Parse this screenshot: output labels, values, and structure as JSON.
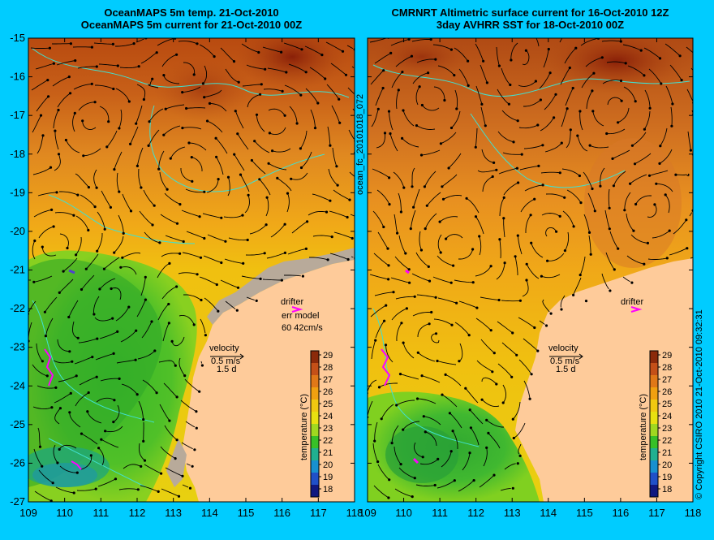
{
  "panels": [
    {
      "id": "left",
      "title_line1": "OceanMAPS 5m temp. 21-Oct-2010",
      "title_line2": "OceanMAPS 5m current for 21-Oct-2010 00Z",
      "drifter_label": "drifter",
      "err_model_label": "err model",
      "err_model_value": "60 42cm/s",
      "velocity_label": "velocity",
      "velocity_scale": "0.5 m/s",
      "velocity_days": "1.5 d"
    },
    {
      "id": "right",
      "title_line1": "CMRNRT Altimetric surface current for 16-Oct-2010 12Z",
      "title_line2": "3day AVHRR SST for 18-Oct-2010 00Z",
      "drifter_label": "drifter",
      "velocity_label": "velocity",
      "velocity_scale": "0.5 m/s",
      "velocity_days": "1.5 d"
    }
  ],
  "axes": {
    "lat_ticks": [
      "-15",
      "-16",
      "-17",
      "-18",
      "-19",
      "-20",
      "-21",
      "-22",
      "-23",
      "-24",
      "-25",
      "-26",
      "-27"
    ],
    "lon_ticks": [
      "109",
      "110",
      "111",
      "112",
      "113",
      "114",
      "115",
      "116",
      "117",
      "118"
    ]
  },
  "colorbar": {
    "ticks": [
      "29",
      "28",
      "27",
      "26",
      "25",
      "24",
      "23",
      "22",
      "21",
      "20",
      "19",
      "18"
    ],
    "label": "temperature (°C)",
    "colors": [
      "#8b2a0a",
      "#c45018",
      "#e07818",
      "#f0a010",
      "#f0c810",
      "#e8e010",
      "#a0d820",
      "#38c028",
      "#20b090",
      "#1890d0",
      "#2050c8",
      "#101880",
      "#000060"
    ]
  },
  "side_label": "ocean_fc_20101018_072",
  "copyright": "© Copyright CSIRO 2010   21-Oct-2010 09:32:31",
  "colors": {
    "background": "#00ccff",
    "land": "#fecb9a",
    "shelf_gray": "#b8aa9a",
    "coast_contour": "#40e0d0",
    "drifter": "#ff00ff"
  }
}
